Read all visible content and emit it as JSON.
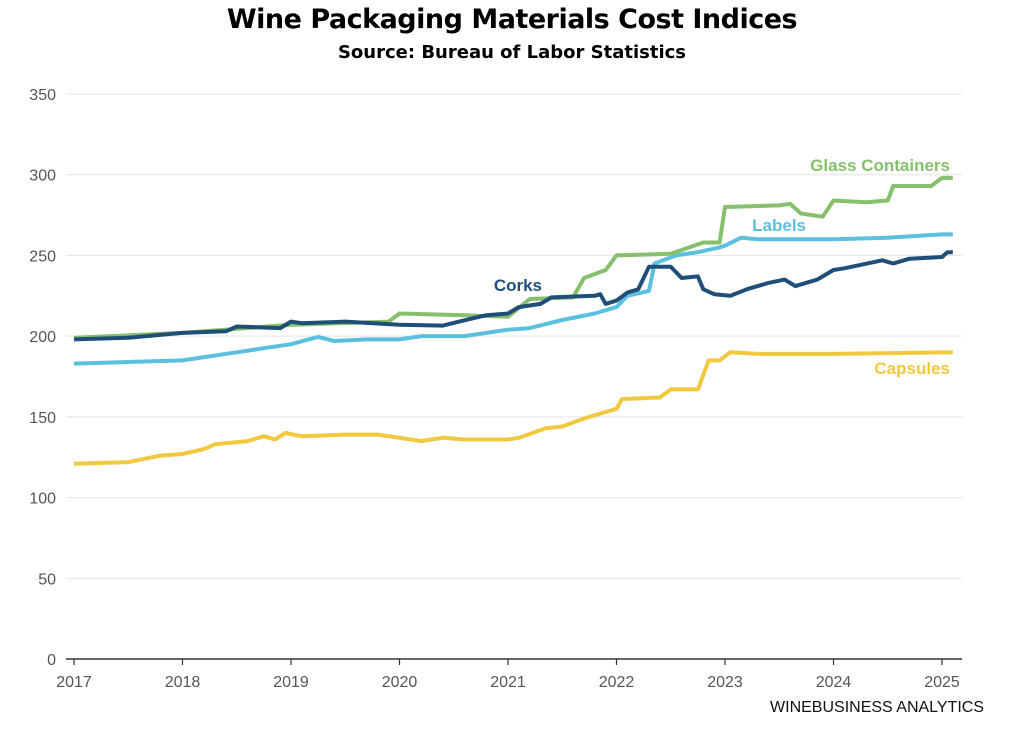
{
  "chart_data": {
    "type": "line",
    "title": "Wine Packaging Materials Cost Indices",
    "subtitle": "Source: Bureau of Labor Statistics",
    "xlabel": "",
    "ylabel": "",
    "xlim": [
      2017,
      2025.1
    ],
    "ylim": [
      0,
      350
    ],
    "x_ticks": [
      "2017",
      "2018",
      "2019",
      "2020",
      "2021",
      "2022",
      "2023",
      "2024",
      "2025"
    ],
    "y_ticks": [
      "0",
      "50",
      "100",
      "150",
      "200",
      "250",
      "300",
      "350"
    ],
    "grid": "horizontal",
    "legend": "direct labels",
    "series": [
      {
        "name": "Glass Containers",
        "color": "#86c06c",
        "x": [
          2017,
          2018,
          2019,
          2019.9,
          2020.0,
          2020.6,
          2021,
          2021.2,
          2021.6,
          2021.7,
          2021.9,
          2022.0,
          2022.5,
          2022.8,
          2022.95,
          2023.0,
          2023.5,
          2023.6,
          2023.7,
          2023.9,
          2024.0,
          2024.3,
          2024.5,
          2024.55,
          2024.9,
          2025.0,
          2025.1
        ],
        "y": [
          199,
          202,
          207,
          209,
          214,
          213,
          212,
          223,
          224,
          236,
          241,
          250,
          251,
          258,
          258,
          280,
          281,
          282,
          276,
          274,
          284,
          283,
          284,
          293,
          293,
          298,
          298
        ]
      },
      {
        "name": "Labels",
        "color": "#5bc0de",
        "x": [
          2017,
          2018,
          2018.3,
          2018.5,
          2018.8,
          2019,
          2019.25,
          2019.4,
          2019.7,
          2020,
          2020.2,
          2020.6,
          2020.8,
          2021,
          2021.2,
          2021.5,
          2021.8,
          2022,
          2022.1,
          2022.3,
          2022.35,
          2022.55,
          2022.75,
          2022.95,
          2023.0,
          2023.15,
          2023.3,
          2024,
          2024.5,
          2025,
          2025.1
        ],
        "y": [
          183,
          185,
          188,
          190,
          193,
          195,
          199.5,
          197,
          198,
          198,
          200,
          200,
          202,
          204,
          205,
          210,
          214,
          218,
          225,
          228,
          245,
          250,
          252,
          255,
          256,
          261,
          260,
          260,
          261,
          263,
          263
        ]
      },
      {
        "name": "Corks",
        "color": "#1f4e79",
        "x": [
          2017,
          2017.5,
          2018,
          2018.4,
          2018.5,
          2018.9,
          2019,
          2019.1,
          2019.5,
          2020,
          2020.4,
          2020.55,
          2020.8,
          2021,
          2021.1,
          2021.3,
          2021.4,
          2021.8,
          2021.85,
          2021.9,
          2022.0,
          2022.1,
          2022.2,
          2022.3,
          2022.5,
          2022.6,
          2022.75,
          2022.8,
          2022.9,
          2023.05,
          2023.2,
          2023.4,
          2023.55,
          2023.65,
          2023.85,
          2024,
          2024.1,
          2024.45,
          2024.55,
          2024.7,
          2025,
          2025.05,
          2025.1
        ],
        "y": [
          198,
          199,
          202,
          203,
          206,
          205,
          209,
          208,
          209,
          207,
          206.5,
          209,
          213,
          214,
          218,
          220,
          224,
          225,
          226,
          220,
          222,
          227,
          229,
          243,
          243,
          236,
          237,
          229,
          226,
          225,
          229,
          233,
          235,
          231,
          235,
          241,
          242,
          247,
          245,
          248,
          249,
          252,
          252
        ]
      },
      {
        "name": "Capsules",
        "color": "#f0c93e",
        "x": [
          2017,
          2017.5,
          2017.8,
          2018,
          2018.2,
          2018.3,
          2018.6,
          2018.75,
          2018.85,
          2018.95,
          2019.1,
          2019.5,
          2019.8,
          2020,
          2020.2,
          2020.4,
          2020.6,
          2021,
          2021.1,
          2021.35,
          2021.5,
          2021.7,
          2021.85,
          2022.0,
          2022.05,
          2022.4,
          2022.5,
          2022.75,
          2022.85,
          2022.95,
          2023.05,
          2023.3,
          2024,
          2025.1
        ],
        "y": [
          121,
          122,
          126,
          127,
          130,
          133,
          135,
          138,
          136,
          140,
          138,
          139,
          139,
          137,
          135,
          137,
          136,
          136,
          137,
          143,
          144,
          149,
          152,
          155,
          161,
          162,
          167,
          167,
          185,
          185,
          190,
          189,
          189,
          190
        ]
      }
    ]
  },
  "footer": "WINEBUSINESS ANALYTICS"
}
